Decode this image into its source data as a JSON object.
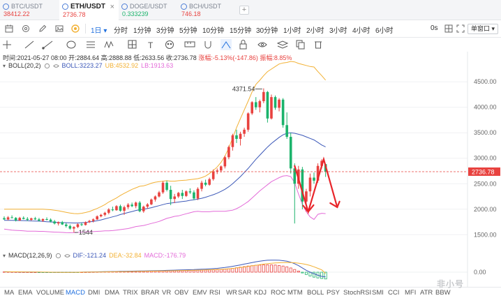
{
  "tabs": [
    {
      "symbol": "BTC/USDT",
      "price": "38412.22",
      "price_color": "#e8423f",
      "active": false
    },
    {
      "symbol": "ETH/USDT",
      "price": "2736.78",
      "price_color": "#e8423f",
      "active": true
    },
    {
      "symbol": "DOGE/USDT",
      "price": "0.333239",
      "price_color": "#1bb36b",
      "active": false
    },
    {
      "symbol": "BCH/USDT",
      "price": "746.18",
      "price_color": "#e8423f",
      "active": false
    }
  ],
  "toolbar": {
    "selected_interval": "1日",
    "intervals": [
      "分时",
      "1分钟",
      "3分钟",
      "5分钟",
      "10分钟",
      "15分钟",
      "30分钟",
      "1小时",
      "2小时",
      "3小时",
      "4小时",
      "6小时"
    ],
    "timer": "0s",
    "layout_button": "单窗口"
  },
  "ohlc": {
    "time": "时间:2021-05-27 08:00",
    "open": "开:2884.64",
    "high": "高:2888.88",
    "low": "低:2633.56",
    "close": "收:2736.78",
    "change": "涨幅:-5.13%(-147.86)",
    "amplitude": "振幅:8.85%"
  },
  "boll": {
    "label": "BOLL(20,2)",
    "mid": "BOLL:3223.27",
    "ub": "UB:4532.92",
    "lb": "LB:1913.63"
  },
  "macd": {
    "label": "MACD(12,26,9)",
    "dif": "DIF:-121.24",
    "dea": "DEA:-32.84",
    "macd": "MACD:-176.79"
  },
  "indicators": [
    "MA",
    "EMA",
    "VOLUME",
    "MACD",
    "DMI",
    "DMA",
    "TRIX",
    "BRAR",
    "VR",
    "OBV",
    "EMV",
    "RSI",
    "WR",
    "SAR",
    "KDJ",
    "ROC",
    "MTM",
    "BOLL",
    "PSY",
    "StochRSI",
    "SMI",
    "CCI",
    "MFI",
    "ATR",
    "BBW"
  ],
  "active_indicator": "MACD",
  "watermark": "非小号",
  "colors": {
    "up": "#e8423f",
    "down": "#1bb36b",
    "ub": "#f2b134",
    "mid": "#3c58b8",
    "lb": "#e36ad8",
    "accent": "#1f6fde",
    "arrow": "#e8252a"
  },
  "chart_data": {
    "type": "candlestick",
    "y_axis_ticks": [
      1500,
      2000,
      2500,
      3000,
      3500,
      4000,
      4500
    ],
    "ylim": [
      1230,
      4900
    ],
    "last_price": 2736.78,
    "annotations": [
      {
        "label": "4371.54",
        "value": 4371.54,
        "kind": "high"
      },
      {
        "label": "1544",
        "value": 1544,
        "kind": "low"
      }
    ],
    "candles": [
      [
        1825,
        1860,
        1790,
        1800
      ],
      [
        1800,
        1865,
        1780,
        1840
      ],
      [
        1840,
        1880,
        1820,
        1830
      ],
      [
        1830,
        1845,
        1760,
        1780
      ],
      [
        1780,
        1850,
        1770,
        1830
      ],
      [
        1830,
        1860,
        1800,
        1810
      ],
      [
        1810,
        1845,
        1770,
        1790
      ],
      [
        1790,
        1835,
        1775,
        1820
      ],
      [
        1820,
        1850,
        1790,
        1800
      ],
      [
        1800,
        1830,
        1760,
        1775
      ],
      [
        1775,
        1820,
        1750,
        1805
      ],
      [
        1805,
        1840,
        1780,
        1795
      ],
      [
        1795,
        1820,
        1740,
        1760
      ],
      [
        1760,
        1790,
        1700,
        1720
      ],
      [
        1720,
        1760,
        1680,
        1745
      ],
      [
        1745,
        1770,
        1690,
        1700
      ],
      [
        1700,
        1730,
        1640,
        1670
      ],
      [
        1670,
        1700,
        1600,
        1620
      ],
      [
        1620,
        1665,
        1544,
        1650
      ],
      [
        1650,
        1720,
        1630,
        1705
      ],
      [
        1705,
        1735,
        1670,
        1690
      ],
      [
        1690,
        1760,
        1680,
        1745
      ],
      [
        1745,
        1790,
        1730,
        1770
      ],
      [
        1770,
        1820,
        1740,
        1800
      ],
      [
        1800,
        1880,
        1790,
        1860
      ],
      [
        1860,
        1910,
        1840,
        1890
      ],
      [
        1890,
        1950,
        1860,
        1930
      ],
      [
        1930,
        2020,
        1900,
        1995
      ],
      [
        1995,
        2050,
        1960,
        1980
      ],
      [
        1980,
        2080,
        1970,
        2060
      ],
      [
        2060,
        2090,
        1950,
        1970
      ],
      [
        1970,
        2070,
        1890,
        2040
      ],
      [
        2040,
        2120,
        2000,
        2090
      ],
      [
        2090,
        2130,
        2040,
        2060
      ],
      [
        2060,
        2150,
        2020,
        2130
      ],
      [
        2130,
        2160,
        1940,
        1960
      ],
      [
        1960,
        2070,
        1930,
        2050
      ],
      [
        2050,
        2120,
        2010,
        2095
      ],
      [
        2095,
        2210,
        2080,
        2190
      ],
      [
        2190,
        2270,
        2150,
        2250
      ],
      [
        2250,
        2360,
        2230,
        2330
      ],
      [
        2330,
        2550,
        2300,
        2520
      ],
      [
        2520,
        2560,
        2350,
        2380
      ],
      [
        2380,
        2460,
        2080,
        2200
      ],
      [
        2200,
        2300,
        2120,
        2250
      ],
      [
        2250,
        2340,
        2220,
        2320
      ],
      [
        2320,
        2380,
        2200,
        2260
      ],
      [
        2260,
        2370,
        2240,
        2350
      ],
      [
        2350,
        2410,
        2300,
        2330
      ],
      [
        2330,
        2370,
        2180,
        2210
      ],
      [
        2210,
        2430,
        2180,
        2400
      ],
      [
        2400,
        2560,
        2350,
        2520
      ],
      [
        2520,
        2580,
        2450,
        2480
      ],
      [
        2480,
        2620,
        2460,
        2590
      ],
      [
        2590,
        2780,
        2560,
        2740
      ],
      [
        2740,
        2800,
        2690,
        2760
      ],
      [
        2760,
        2860,
        2720,
        2840
      ],
      [
        2840,
        3050,
        2800,
        3020
      ],
      [
        3020,
        3250,
        2980,
        3220
      ],
      [
        3220,
        3480,
        3150,
        3450
      ],
      [
        3450,
        3560,
        3300,
        3380
      ],
      [
        3380,
        3520,
        3250,
        3480
      ],
      [
        3480,
        3600,
        3420,
        3560
      ],
      [
        3560,
        3900,
        3520,
        3880
      ],
      [
        3880,
        4120,
        3850,
        4100
      ],
      [
        4100,
        4200,
        3950,
        4000
      ],
      [
        4000,
        4150,
        3900,
        4120
      ],
      [
        4120,
        4371.54,
        4080,
        4300
      ],
      [
        4300,
        4320,
        3700,
        3780
      ],
      [
        3780,
        4250,
        3760,
        4200
      ],
      [
        4200,
        4230,
        3950,
        3990
      ],
      [
        3990,
        4180,
        3920,
        4150
      ],
      [
        4150,
        4180,
        3600,
        3650
      ],
      [
        3650,
        3900,
        3380,
        3420
      ],
      [
        3420,
        3500,
        2700,
        2800
      ],
      [
        2800,
        2900,
        1720,
        2500
      ],
      [
        2500,
        2850,
        2400,
        2780
      ],
      [
        2780,
        2830,
        2000,
        2150
      ],
      [
        2150,
        2400,
        1950,
        2350
      ],
      [
        2350,
        2700,
        2250,
        2620
      ],
      [
        2620,
        2720,
        2500,
        2560
      ],
      [
        2560,
        2900,
        2520,
        2850
      ],
      [
        2850,
        2980,
        2800,
        2950
      ],
      [
        2884.64,
        2888.88,
        2633.56,
        2736.78
      ]
    ],
    "ub": [
      2000,
      2000,
      2000,
      2000,
      2000,
      2000,
      2000,
      2000,
      2000,
      2000,
      2000,
      1995,
      1990,
      1980,
      1970,
      1955,
      1940,
      1925,
      1915,
      1910,
      1920,
      1935,
      1955,
      1985,
      2015,
      2050,
      2090,
      2140,
      2180,
      2220,
      2270,
      2310,
      2350,
      2390,
      2420,
      2450,
      2460,
      2480,
      2510,
      2530,
      2540,
      2550,
      2560,
      2550,
      2550,
      2560,
      2565,
      2570,
      2580,
      2590,
      2600,
      2620,
      2650,
      2700,
      2760,
      2830,
      2920,
      3040,
      3200,
      3400,
      3600,
      3780,
      3950,
      4120,
      4300,
      4450,
      4530,
      4620,
      4700,
      4750,
      4800,
      4850,
      4870,
      4880,
      4900,
      4890,
      4860,
      4840,
      4820,
      4800,
      4790,
      4700,
      4620,
      4532.92
    ],
    "mid": [
      1780,
      1780,
      1780,
      1779,
      1778,
      1776,
      1773,
      1770,
      1768,
      1765,
      1760,
      1755,
      1750,
      1745,
      1740,
      1738,
      1735,
      1732,
      1730,
      1730,
      1735,
      1740,
      1750,
      1760,
      1775,
      1790,
      1810,
      1830,
      1850,
      1870,
      1895,
      1915,
      1935,
      1955,
      1975,
      1990,
      2000,
      2015,
      2030,
      2050,
      2070,
      2090,
      2110,
      2120,
      2130,
      2140,
      2150,
      2160,
      2175,
      2185,
      2200,
      2215,
      2235,
      2260,
      2285,
      2315,
      2350,
      2390,
      2440,
      2500,
      2570,
      2640,
      2720,
      2800,
      2890,
      2980,
      3060,
      3140,
      3220,
      3290,
      3350,
      3410,
      3460,
      3490,
      3500,
      3490,
      3470,
      3450,
      3420,
      3390,
      3360,
      3310,
      3260,
      3223.27
    ],
    "lb": [
      1610,
      1600,
      1590,
      1585,
      1580,
      1575,
      1570,
      1570,
      1568,
      1566,
      1565,
      1560,
      1555,
      1550,
      1548,
      1545,
      1540,
      1538,
      1540,
      1545,
      1550,
      1555,
      1560,
      1560,
      1565,
      1570,
      1575,
      1575,
      1580,
      1590,
      1600,
      1610,
      1620,
      1640,
      1660,
      1670,
      1680,
      1700,
      1720,
      1740,
      1760,
      1790,
      1820,
      1840,
      1860,
      1870,
      1890,
      1910,
      1930,
      1950,
      1960,
      1950,
      1950,
      1950,
      1960,
      1960,
      1960,
      1960,
      1970,
      1980,
      2010,
      2050,
      2100,
      2150,
      2220,
      2290,
      2360,
      2420,
      2480,
      2540,
      2580,
      2620,
      2650,
      2660,
      2640,
      2520,
      2300,
      2100,
      1950,
      1850,
      1800,
      1900,
      1920,
      1913.63
    ],
    "macd_hist": [
      8,
      7,
      6,
      5,
      4,
      3,
      2,
      1,
      0,
      -1,
      -2,
      -3,
      -4,
      -5,
      -6,
      -7,
      -8,
      -6,
      -4,
      -2,
      0,
      2,
      4,
      6,
      8,
      10,
      12,
      14,
      15,
      16,
      18,
      19,
      20,
      21,
      22,
      23,
      24,
      25,
      27,
      29,
      31,
      34,
      36,
      37,
      38,
      39,
      40,
      42,
      44,
      46,
      48,
      50,
      53,
      57,
      60,
      64,
      70,
      78,
      88,
      100,
      115,
      130,
      145,
      160,
      170,
      180,
      185,
      190,
      192,
      190,
      185,
      175,
      160,
      140,
      110,
      70,
      30,
      -20,
      -60,
      -100,
      -130,
      -150,
      -165,
      -176.79
    ],
    "macd_dif": [
      10,
      9,
      8,
      7,
      6,
      5,
      4,
      3,
      2,
      1,
      0,
      -1,
      -2,
      -3,
      -4,
      -5,
      -6,
      -5,
      -3,
      -1,
      1,
      3,
      5,
      7,
      9,
      11,
      13,
      15,
      17,
      19,
      21,
      23,
      25,
      27,
      29,
      31,
      33,
      35,
      37,
      39,
      41,
      44,
      47,
      50,
      53,
      56,
      59,
      62,
      65,
      68,
      72,
      76,
      80,
      86,
      92,
      100,
      110,
      122,
      136,
      152,
      170,
      190,
      210,
      230,
      250,
      270,
      285,
      300,
      310,
      315,
      315,
      310,
      300,
      285,
      260,
      220,
      170,
      110,
      50,
      0,
      -40,
      -80,
      -110,
      -121.24
    ],
    "macd_dea": [
      12,
      11,
      10,
      9,
      8,
      7,
      6,
      5,
      4,
      3,
      2,
      1,
      0,
      -1,
      -2,
      -3,
      -3,
      -3,
      -2,
      -1,
      0,
      1,
      2,
      3,
      4,
      6,
      7,
      9,
      10,
      12,
      13,
      15,
      17,
      18,
      20,
      22,
      23,
      25,
      27,
      29,
      31,
      33,
      35,
      37,
      39,
      41,
      43,
      45,
      47,
      50,
      52,
      55,
      58,
      61,
      65,
      70,
      75,
      82,
      90,
      99,
      110,
      122,
      135,
      150,
      165,
      180,
      195,
      210,
      222,
      232,
      240,
      246,
      250,
      252,
      250,
      245,
      235,
      220,
      200,
      175,
      140,
      100,
      60,
      -32.84
    ],
    "macd_ticks": [
      0
    ]
  }
}
